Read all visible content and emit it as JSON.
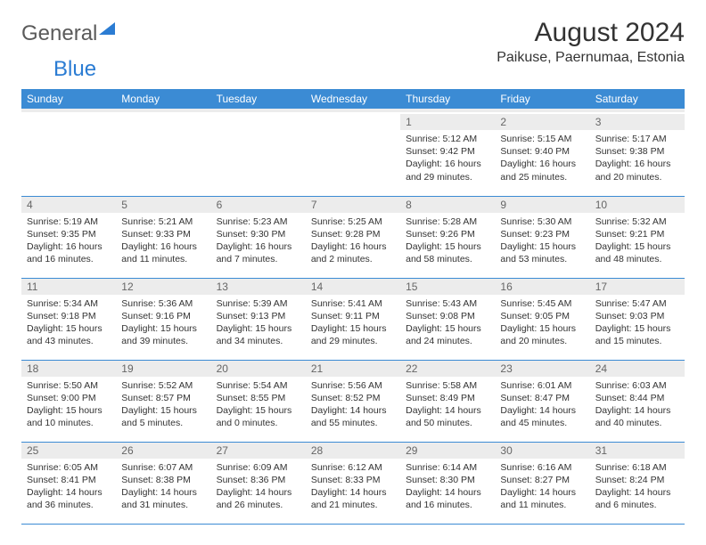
{
  "brand": {
    "part1": "General",
    "part2": "Blue"
  },
  "title": "August 2024",
  "location": "Paikuse, Paernumaa, Estonia",
  "colors": {
    "header_bg": "#3b8bd4",
    "header_text": "#ffffff",
    "daynum_bg": "#ececec",
    "daynum_text": "#666666",
    "body_text": "#333333",
    "row_border": "#3b8bd4",
    "brand_gray": "#5a5a5a",
    "brand_blue": "#2b7cd3",
    "background": "#ffffff"
  },
  "typography": {
    "title_fontsize": 30,
    "location_fontsize": 16,
    "header_fontsize": 12,
    "daynum_fontsize": 12,
    "body_fontsize": 10.5,
    "logo_fontsize": 24
  },
  "days_of_week": [
    "Sunday",
    "Monday",
    "Tuesday",
    "Wednesday",
    "Thursday",
    "Friday",
    "Saturday"
  ],
  "weeks": [
    [
      null,
      null,
      null,
      null,
      {
        "n": "1",
        "sr": "5:12 AM",
        "ss": "9:42 PM",
        "dl": "16 hours and 29 minutes."
      },
      {
        "n": "2",
        "sr": "5:15 AM",
        "ss": "9:40 PM",
        "dl": "16 hours and 25 minutes."
      },
      {
        "n": "3",
        "sr": "5:17 AM",
        "ss": "9:38 PM",
        "dl": "16 hours and 20 minutes."
      }
    ],
    [
      {
        "n": "4",
        "sr": "5:19 AM",
        "ss": "9:35 PM",
        "dl": "16 hours and 16 minutes."
      },
      {
        "n": "5",
        "sr": "5:21 AM",
        "ss": "9:33 PM",
        "dl": "16 hours and 11 minutes."
      },
      {
        "n": "6",
        "sr": "5:23 AM",
        "ss": "9:30 PM",
        "dl": "16 hours and 7 minutes."
      },
      {
        "n": "7",
        "sr": "5:25 AM",
        "ss": "9:28 PM",
        "dl": "16 hours and 2 minutes."
      },
      {
        "n": "8",
        "sr": "5:28 AM",
        "ss": "9:26 PM",
        "dl": "15 hours and 58 minutes."
      },
      {
        "n": "9",
        "sr": "5:30 AM",
        "ss": "9:23 PM",
        "dl": "15 hours and 53 minutes."
      },
      {
        "n": "10",
        "sr": "5:32 AM",
        "ss": "9:21 PM",
        "dl": "15 hours and 48 minutes."
      }
    ],
    [
      {
        "n": "11",
        "sr": "5:34 AM",
        "ss": "9:18 PM",
        "dl": "15 hours and 43 minutes."
      },
      {
        "n": "12",
        "sr": "5:36 AM",
        "ss": "9:16 PM",
        "dl": "15 hours and 39 minutes."
      },
      {
        "n": "13",
        "sr": "5:39 AM",
        "ss": "9:13 PM",
        "dl": "15 hours and 34 minutes."
      },
      {
        "n": "14",
        "sr": "5:41 AM",
        "ss": "9:11 PM",
        "dl": "15 hours and 29 minutes."
      },
      {
        "n": "15",
        "sr": "5:43 AM",
        "ss": "9:08 PM",
        "dl": "15 hours and 24 minutes."
      },
      {
        "n": "16",
        "sr": "5:45 AM",
        "ss": "9:05 PM",
        "dl": "15 hours and 20 minutes."
      },
      {
        "n": "17",
        "sr": "5:47 AM",
        "ss": "9:03 PM",
        "dl": "15 hours and 15 minutes."
      }
    ],
    [
      {
        "n": "18",
        "sr": "5:50 AM",
        "ss": "9:00 PM",
        "dl": "15 hours and 10 minutes."
      },
      {
        "n": "19",
        "sr": "5:52 AM",
        "ss": "8:57 PM",
        "dl": "15 hours and 5 minutes."
      },
      {
        "n": "20",
        "sr": "5:54 AM",
        "ss": "8:55 PM",
        "dl": "15 hours and 0 minutes."
      },
      {
        "n": "21",
        "sr": "5:56 AM",
        "ss": "8:52 PM",
        "dl": "14 hours and 55 minutes."
      },
      {
        "n": "22",
        "sr": "5:58 AM",
        "ss": "8:49 PM",
        "dl": "14 hours and 50 minutes."
      },
      {
        "n": "23",
        "sr": "6:01 AM",
        "ss": "8:47 PM",
        "dl": "14 hours and 45 minutes."
      },
      {
        "n": "24",
        "sr": "6:03 AM",
        "ss": "8:44 PM",
        "dl": "14 hours and 40 minutes."
      }
    ],
    [
      {
        "n": "25",
        "sr": "6:05 AM",
        "ss": "8:41 PM",
        "dl": "14 hours and 36 minutes."
      },
      {
        "n": "26",
        "sr": "6:07 AM",
        "ss": "8:38 PM",
        "dl": "14 hours and 31 minutes."
      },
      {
        "n": "27",
        "sr": "6:09 AM",
        "ss": "8:36 PM",
        "dl": "14 hours and 26 minutes."
      },
      {
        "n": "28",
        "sr": "6:12 AM",
        "ss": "8:33 PM",
        "dl": "14 hours and 21 minutes."
      },
      {
        "n": "29",
        "sr": "6:14 AM",
        "ss": "8:30 PM",
        "dl": "14 hours and 16 minutes."
      },
      {
        "n": "30",
        "sr": "6:16 AM",
        "ss": "8:27 PM",
        "dl": "14 hours and 11 minutes."
      },
      {
        "n": "31",
        "sr": "6:18 AM",
        "ss": "8:24 PM",
        "dl": "14 hours and 6 minutes."
      }
    ]
  ],
  "labels": {
    "sunrise": "Sunrise:",
    "sunset": "Sunset:",
    "daylight": "Daylight:"
  }
}
